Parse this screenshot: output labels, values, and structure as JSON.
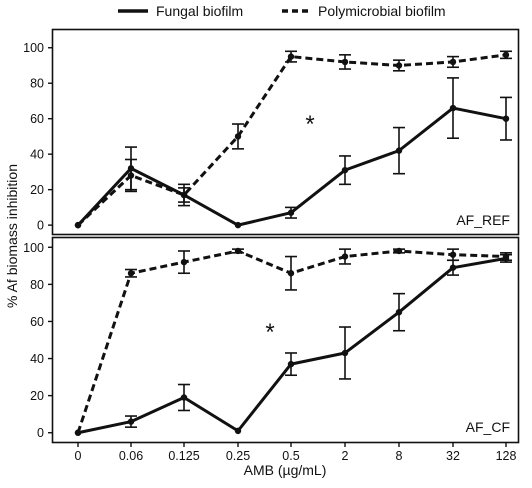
{
  "chart_data": {
    "type": "line",
    "x_categories": [
      "0",
      "0.06",
      "0.125",
      "0.25",
      "0.5",
      "2",
      "8",
      "32",
      "128"
    ],
    "xlabel": "AMB (µg/mL)",
    "ylabel": "% Af biomass inhibition",
    "yticks": [
      "0",
      "20",
      "40",
      "60",
      "80",
      "100"
    ],
    "legend": [
      {
        "name": "Fungal biofilm",
        "style": "solid"
      },
      {
        "name": "Polymicrobial biofilm",
        "style": "dashed"
      }
    ],
    "legend_position": "top-center",
    "grid": false,
    "panels": [
      {
        "label": "AF_REF",
        "annotation": "*",
        "ylim": [
          -5,
          110
        ],
        "series": [
          {
            "name": "Fungal biofilm",
            "values": [
              0,
              32,
              17,
              0,
              7,
              31,
              42,
              66,
              60
            ],
            "errors": [
              0,
              12,
              6,
              0,
              3,
              8,
              13,
              17,
              12
            ]
          },
          {
            "name": "Polymicrobial biofilm",
            "values": [
              0,
              28,
              17,
              50,
              95,
              92,
              90,
              92,
              96
            ],
            "errors": [
              0,
              9,
              4,
              7,
              3,
              4,
              3,
              3,
              2
            ]
          }
        ]
      },
      {
        "label": "AF_CF",
        "annotation": "*",
        "ylim": [
          -5,
          105
        ],
        "series": [
          {
            "name": "Fungal biofilm",
            "values": [
              0,
              6,
              19,
              1,
              37,
              43,
              65,
              89,
              94
            ],
            "errors": [
              0,
              3,
              7,
              0,
              6,
              14,
              10,
              4,
              2
            ]
          },
          {
            "name": "Polymicrobial biofilm",
            "values": [
              0,
              86,
              92,
              98,
              86,
              95,
              98,
              96,
              95
            ],
            "errors": [
              0,
              2,
              6,
              1,
              9,
              4,
              1,
              3,
              2
            ]
          }
        ]
      }
    ]
  },
  "colors": {
    "line": "#111111",
    "marker": "#111111",
    "frame": "#111111"
  }
}
